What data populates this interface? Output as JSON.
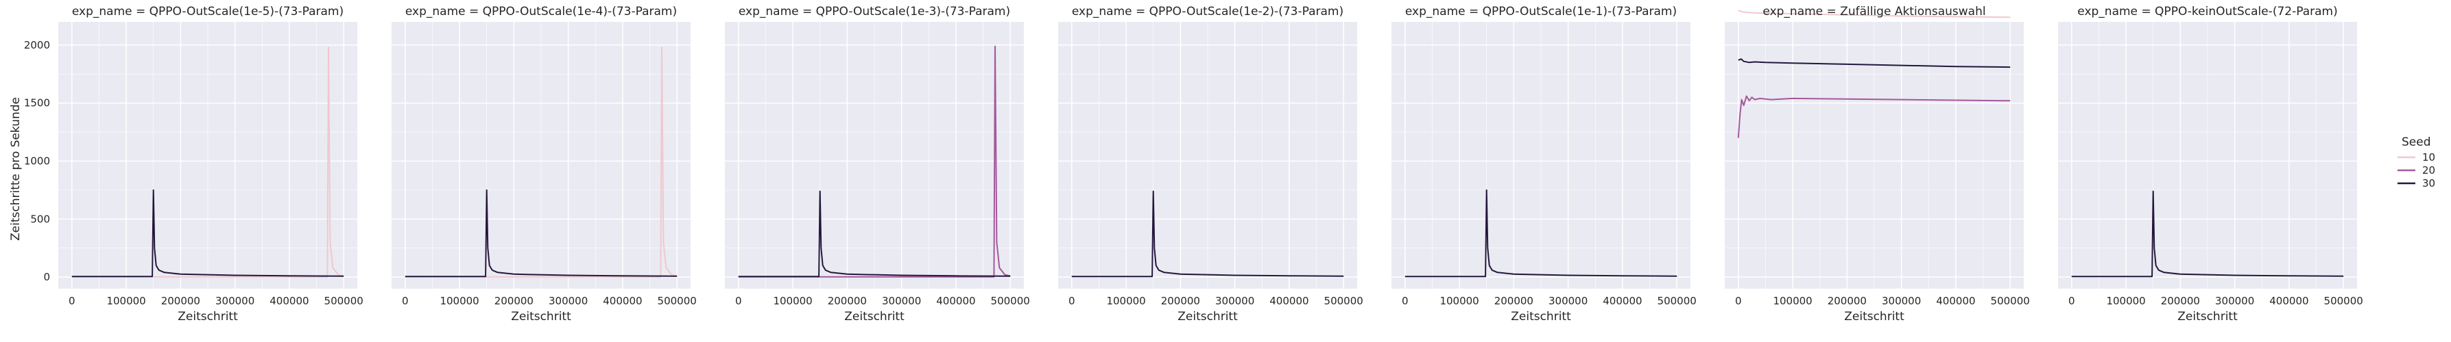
{
  "chart_data": {
    "type": "line",
    "facet": "exp_name",
    "ylabel": "Zeitschritte pro Sekunde",
    "ylim": [
      -100,
      2200
    ],
    "yticks": [
      0,
      500,
      1000,
      1500,
      2000
    ],
    "xlim": [
      -25000,
      525000
    ],
    "xticks": [
      0,
      100000,
      200000,
      300000,
      400000,
      500000
    ],
    "legend": {
      "title": "Seed",
      "position": "right",
      "entries": [
        {
          "label": "10",
          "color": "#f0c8cf"
        },
        {
          "label": "20",
          "color": "#a3589c"
        },
        {
          "label": "30",
          "color": "#23173d"
        }
      ]
    },
    "panels": [
      {
        "title": "exp_name = QPPO-OutScale(1e-5)-(73-Param)",
        "xlabel": "Zeitschritt",
        "series": [
          {
            "seed": "10",
            "x": [
              0,
              100000,
              200000,
              300000,
              400000,
              470000,
              472000,
              475000,
              480000,
              490000,
              500000
            ],
            "y": [
              2,
              2,
              2,
              2,
              2,
              2,
              1980,
              300,
              80,
              20,
              10
            ]
          },
          {
            "seed": "30",
            "x": [
              0,
              100000,
              148000,
              150000,
              152000,
              155000,
              160000,
              170000,
              200000,
              300000,
              400000,
              500000
            ],
            "y": [
              5,
              5,
              5,
              750,
              250,
              100,
              60,
              40,
              25,
              15,
              10,
              8
            ]
          }
        ]
      },
      {
        "title": "exp_name = QPPO-OutScale(1e-4)-(73-Param)",
        "xlabel": "Zeitschritt",
        "series": [
          {
            "seed": "10",
            "x": [
              0,
              100000,
              200000,
              300000,
              400000,
              470000,
              472000,
              475000,
              480000,
              490000,
              500000
            ],
            "y": [
              2,
              2,
              2,
              2,
              2,
              2,
              1980,
              300,
              80,
              20,
              10
            ]
          },
          {
            "seed": "30",
            "x": [
              0,
              100000,
              148000,
              150000,
              152000,
              155000,
              160000,
              170000,
              200000,
              300000,
              400000,
              500000
            ],
            "y": [
              5,
              5,
              5,
              750,
              250,
              100,
              60,
              40,
              25,
              15,
              10,
              8
            ]
          }
        ]
      },
      {
        "title": "exp_name = QPPO-OutScale(1e-3)-(73-Param)",
        "xlabel": "Zeitschritt",
        "series": [
          {
            "seed": "20",
            "x": [
              0,
              100000,
              200000,
              300000,
              400000,
              470000,
              472000,
              475000,
              480000,
              490000,
              500000
            ],
            "y": [
              2,
              2,
              2,
              2,
              2,
              2,
              1990,
              300,
              80,
              20,
              10
            ]
          },
          {
            "seed": "30",
            "x": [
              0,
              100000,
              148000,
              150000,
              152000,
              155000,
              160000,
              170000,
              200000,
              300000,
              400000,
              500000
            ],
            "y": [
              5,
              5,
              5,
              740,
              250,
              100,
              60,
              40,
              25,
              15,
              10,
              8
            ]
          }
        ]
      },
      {
        "title": "exp_name = QPPO-OutScale(1e-2)-(73-Param)",
        "xlabel": "Zeitschritt",
        "series": [
          {
            "seed": "30",
            "x": [
              0,
              100000,
              148000,
              150000,
              152000,
              155000,
              160000,
              170000,
              200000,
              300000,
              400000,
              500000
            ],
            "y": [
              5,
              5,
              5,
              740,
              250,
              100,
              60,
              40,
              25,
              15,
              10,
              8
            ]
          }
        ]
      },
      {
        "title": "exp_name = QPPO-OutScale(1e-1)-(73-Param)",
        "xlabel": "Zeitschritt",
        "series": [
          {
            "seed": "30",
            "x": [
              0,
              100000,
              148000,
              150000,
              152000,
              155000,
              160000,
              170000,
              200000,
              300000,
              400000,
              500000
            ],
            "y": [
              5,
              5,
              5,
              750,
              250,
              100,
              60,
              40,
              25,
              15,
              10,
              8
            ]
          }
        ]
      },
      {
        "title": "exp_name = Zufällige Aktionsauswahl",
        "xlabel": "Zeitschritt",
        "series": [
          {
            "seed": "10",
            "x": [
              0,
              5000,
              10000,
              20000,
              30000,
              50000,
              100000,
              200000,
              300000,
              400000,
              500000
            ],
            "y": [
              2300,
              2290,
              2285,
              2280,
              2278,
              2275,
              2270,
              2260,
              2250,
              2245,
              2240
            ]
          },
          {
            "seed": "20",
            "x": [
              0,
              3000,
              6000,
              10000,
              15000,
              20000,
              25000,
              30000,
              40000,
              60000,
              100000,
              200000,
              300000,
              400000,
              500000
            ],
            "y": [
              1200,
              1400,
              1530,
              1480,
              1560,
              1520,
              1550,
              1530,
              1540,
              1530,
              1540,
              1535,
              1530,
              1525,
              1520
            ]
          },
          {
            "seed": "30",
            "x": [
              0,
              5000,
              10000,
              20000,
              30000,
              50000,
              100000,
              200000,
              300000,
              400000,
              500000
            ],
            "y": [
              1870,
              1880,
              1860,
              1850,
              1855,
              1850,
              1845,
              1835,
              1825,
              1815,
              1810
            ]
          }
        ]
      },
      {
        "title": "exp_name = QPPO-keinOutScale-(72-Param)",
        "xlabel": "Zeitschritt",
        "series": [
          {
            "seed": "30",
            "x": [
              0,
              100000,
              148000,
              150000,
              152000,
              155000,
              160000,
              170000,
              200000,
              300000,
              400000,
              500000
            ],
            "y": [
              5,
              5,
              5,
              740,
              250,
              100,
              60,
              40,
              25,
              15,
              10,
              8
            ]
          }
        ]
      }
    ]
  }
}
